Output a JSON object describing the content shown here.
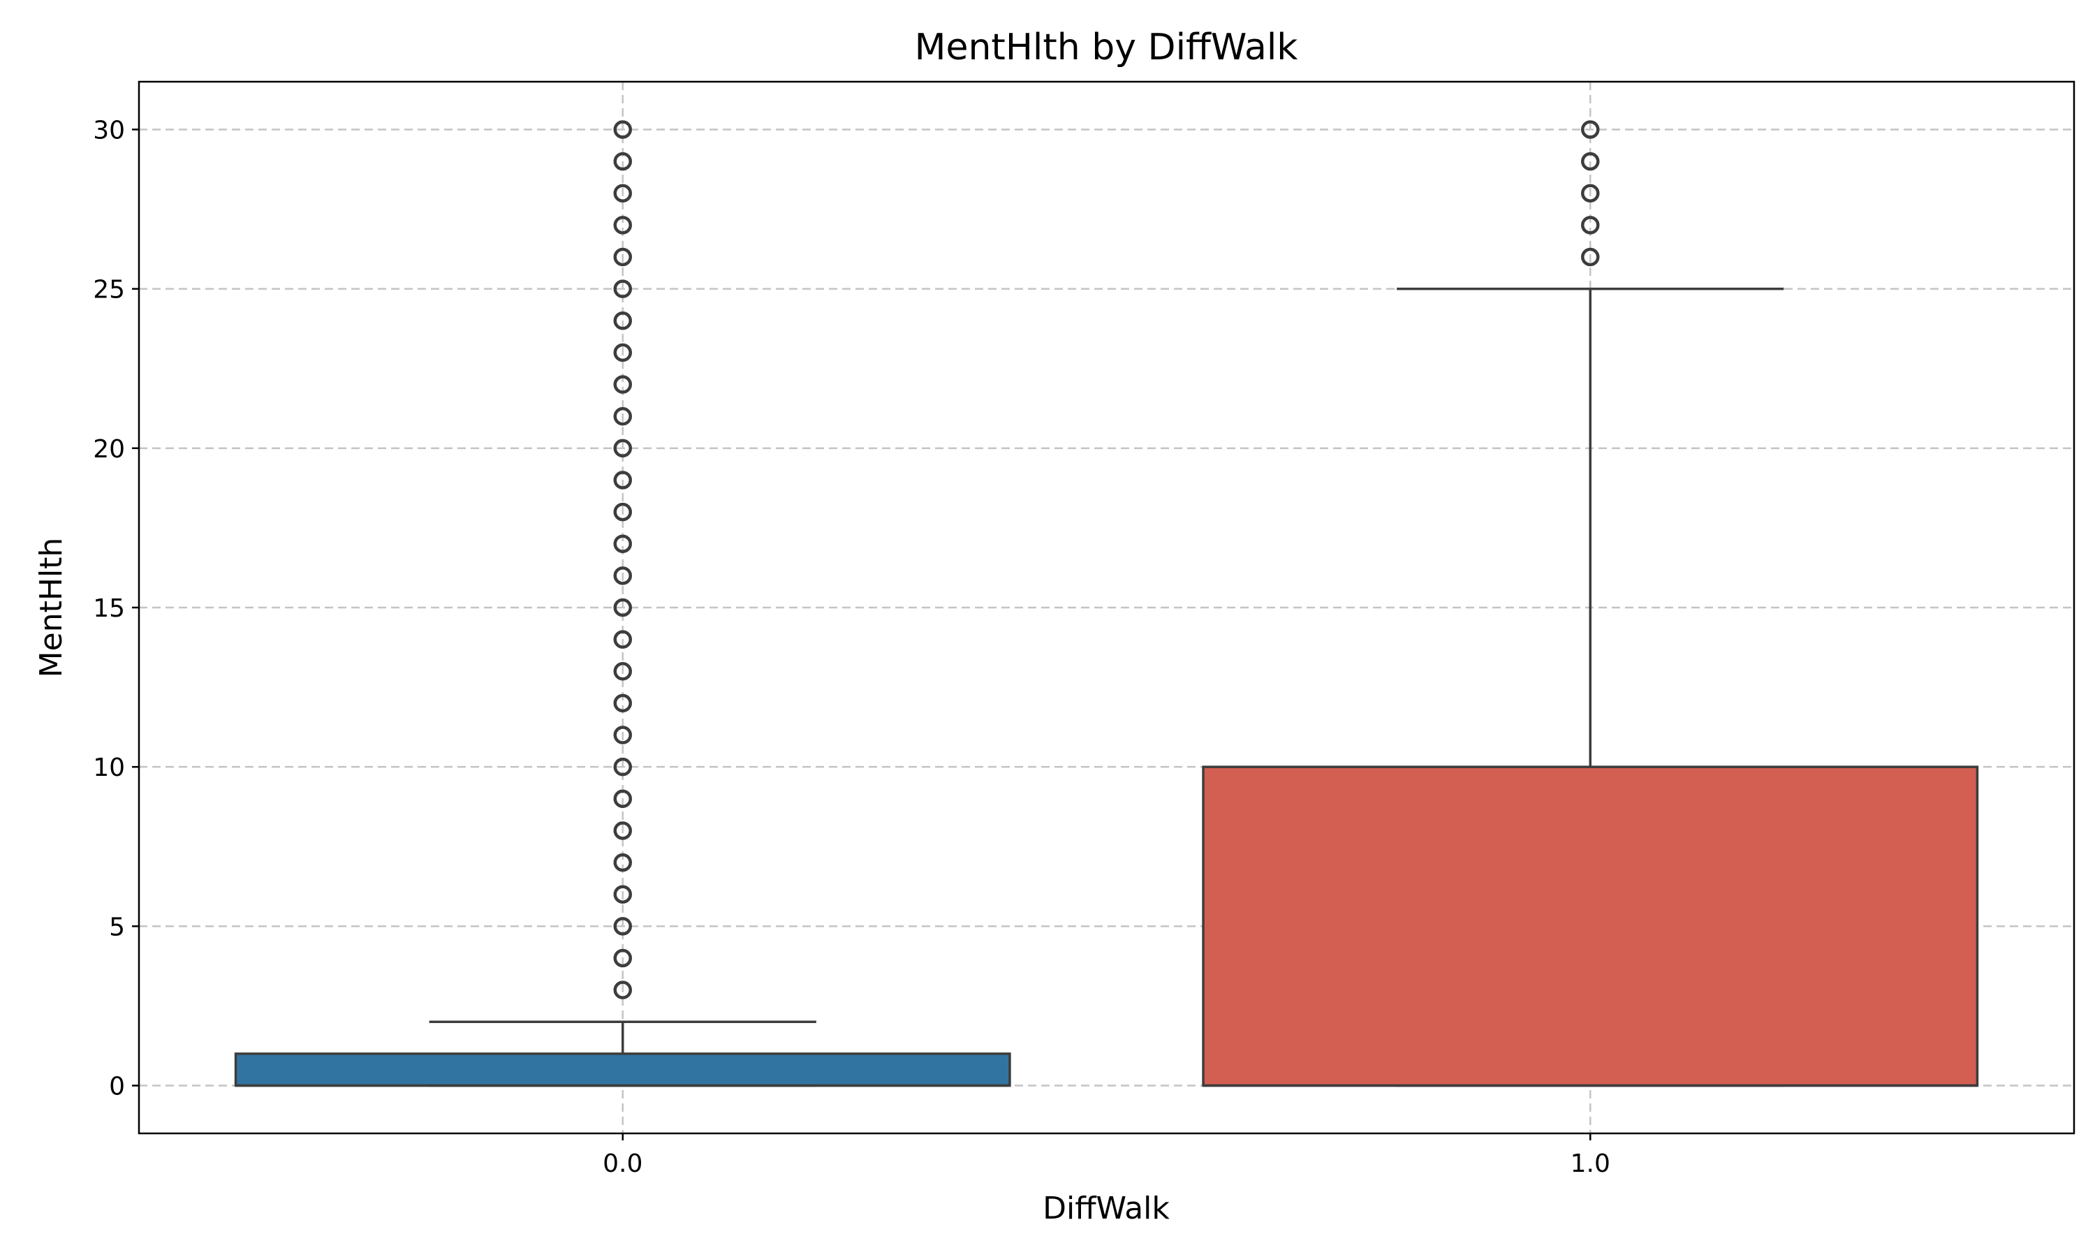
{
  "chart_data": {
    "type": "box",
    "title": "MentHlth by DiffWalk",
    "xlabel": "DiffWalk",
    "ylabel": "MentHlth",
    "categories": [
      "0.0",
      "1.0"
    ],
    "ylim": [
      -1.5,
      31.5
    ],
    "yticks": [
      0,
      5,
      10,
      15,
      20,
      25,
      30
    ],
    "grid": true,
    "legend": "none",
    "boxes": [
      {
        "category": "0.0",
        "color": "#3274a1",
        "whisker_low": 0,
        "q1": 0,
        "median": 0,
        "q3": 1,
        "whisker_high": 2,
        "outliers": [
          3,
          4,
          5,
          6,
          7,
          8,
          9,
          10,
          11,
          12,
          13,
          14,
          15,
          16,
          17,
          18,
          19,
          20,
          21,
          22,
          23,
          24,
          25,
          26,
          27,
          28,
          29,
          30
        ]
      },
      {
        "category": "1.0",
        "color": "#d35f52",
        "whisker_low": 0,
        "q1": 0,
        "median": 0,
        "q3": 10,
        "whisker_high": 25,
        "outliers": [
          26,
          27,
          28,
          29,
          30
        ]
      }
    ]
  }
}
